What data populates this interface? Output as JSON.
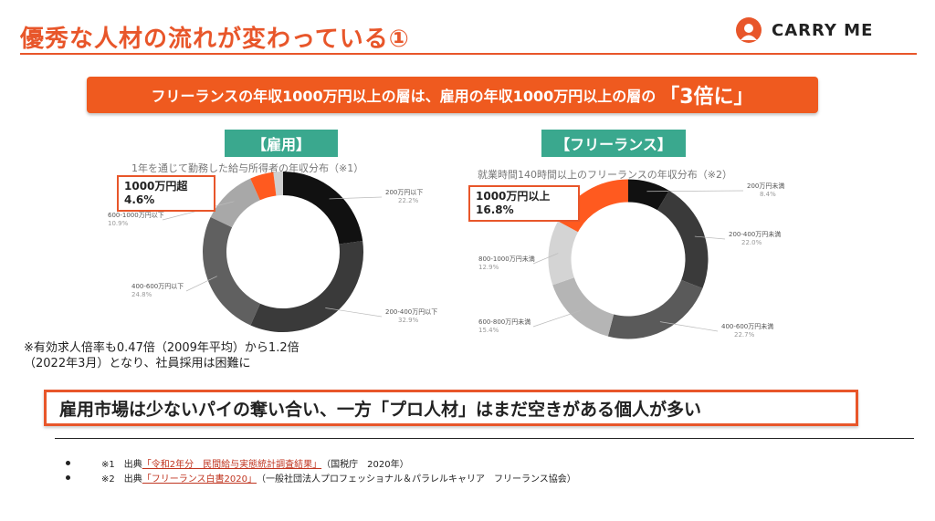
{
  "header": {
    "title": "優秀な人材の流れが変わっている①",
    "logo_text": "CARRY ME"
  },
  "banner": {
    "text": "フリーランスの年収1000万円以上の層は、雇用の年収1000万円以上の層の",
    "emphasis": "「3倍に」"
  },
  "colors": {
    "accent": "#e8562a",
    "banner": "#ef5a1f",
    "label_green": "#3aa88e"
  },
  "chart_data": [
    {
      "type": "pie",
      "label": "【雇用】",
      "title": "1年を通じて勤務した給与所得者の年収分布（※1）",
      "highlight": "1000万円超\n4.6%",
      "categories": [
        "200万円以下",
        "200-400万円以下",
        "400-600万円以下",
        "600-1000万円以下",
        "1000万円超"
      ],
      "values": [
        22.2,
        32.9,
        24.8,
        10.9,
        4.6
      ],
      "visible_value_labels": [
        "22.2%",
        "32.9%",
        "24.8%",
        "10.9%",
        ""
      ],
      "colors": [
        "#111111",
        "#3a3a3a",
        "#606060",
        "#a8a8a8",
        "#ff5a1f"
      ],
      "gap_color": "#cfcfcf"
    },
    {
      "type": "pie",
      "label": "【フリーランス】",
      "title": "就業時間140時間以上のフリーランスの年収分布（※2）",
      "highlight": "1000万円以上\n16.8%",
      "categories": [
        "200万円未満",
        "200-400万円未満",
        "400-600万円未満",
        "600-800万円未満",
        "800-1000万円未満",
        "1000万円以上"
      ],
      "values": [
        8.4,
        22.0,
        22.7,
        15.4,
        12.9,
        16.8
      ],
      "visible_value_labels": [
        "8.4%",
        "22.0%",
        "22.7%",
        "15.4%",
        "12.9%",
        ""
      ],
      "colors": [
        "#111111",
        "#3a3a3a",
        "#5a5a5a",
        "#b5b5b5",
        "#d4d4d4",
        "#ff5a1f"
      ]
    }
  ],
  "note": {
    "line1": "※有効求人倍率も0.47倍（2009年平均）から1.2倍",
    "line2": "（2022年3月）となり、社員採用は困難に"
  },
  "message": "雇用市場は少ないパイの奪い合い、一方「プロ人材」はまだ空きがある個人が多い",
  "sources": [
    {
      "mark": "※1　出典",
      "link": "「令和2年分　民間給与実態統計調査結果」",
      "suffix": "（国税庁　2020年）"
    },
    {
      "mark": "※2　出典",
      "link": "「フリーランス白書2020」",
      "suffix": "（一般社団法人プロフェッショナル＆パラレルキャリア　フリーランス協会）"
    }
  ]
}
